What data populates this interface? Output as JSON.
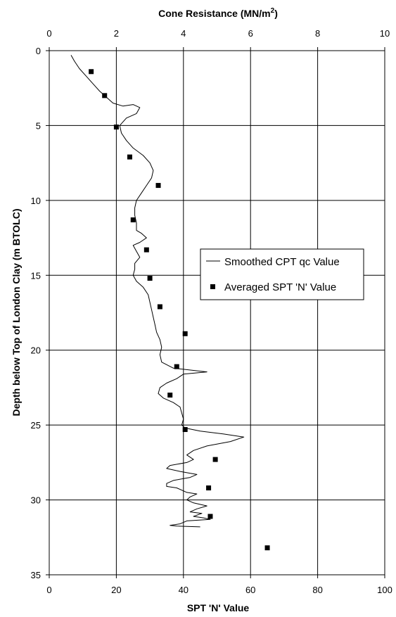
{
  "chart_data": {
    "type": "line",
    "top_axis": {
      "title_text": "Cone Resistance (MN/m",
      "title_sup": "2",
      "title_close": ")",
      "min": 0,
      "max": 10,
      "ticks": [
        "0",
        "2",
        "4",
        "6",
        "8",
        "10"
      ]
    },
    "bottom_axis": {
      "title": "SPT 'N' Value",
      "min": 0,
      "max": 100,
      "ticks": [
        "0",
        "20",
        "40",
        "60",
        "80",
        "100"
      ]
    },
    "y_axis": {
      "title": "Depth below Top of London Clay (m BTOLC)",
      "min": 0,
      "max": 35,
      "inverted": true,
      "ticks": [
        "0",
        "5",
        "10",
        "15",
        "20",
        "25",
        "30",
        "35"
      ]
    },
    "grid": true,
    "legend": {
      "position": "right-middle",
      "items": [
        "Smoothed CPT qc Value",
        "Averaged SPT 'N' Value"
      ]
    },
    "series": [
      {
        "name": "Smoothed CPT qc Value",
        "kind": "line",
        "axis": "top",
        "color": "#000000",
        "points": [
          [
            0.65,
            0.3
          ],
          [
            0.75,
            0.7
          ],
          [
            0.9,
            1.2
          ],
          [
            1.1,
            1.7
          ],
          [
            1.3,
            2.2
          ],
          [
            1.5,
            2.7
          ],
          [
            1.7,
            3.1
          ],
          [
            1.9,
            3.5
          ],
          [
            2.2,
            3.7
          ],
          [
            2.5,
            3.6
          ],
          [
            2.7,
            3.8
          ],
          [
            2.6,
            4.2
          ],
          [
            2.3,
            4.5
          ],
          [
            2.1,
            5.0
          ],
          [
            2.15,
            5.5
          ],
          [
            2.3,
            6.0
          ],
          [
            2.5,
            6.5
          ],
          [
            2.8,
            7.0
          ],
          [
            3.0,
            7.5
          ],
          [
            3.1,
            8.0
          ],
          [
            3.05,
            8.5
          ],
          [
            2.9,
            9.0
          ],
          [
            2.75,
            9.5
          ],
          [
            2.6,
            10.0
          ],
          [
            2.55,
            10.5
          ],
          [
            2.55,
            11.0
          ],
          [
            2.6,
            11.5
          ],
          [
            2.6,
            12.0
          ],
          [
            2.75,
            12.2
          ],
          [
            2.9,
            12.5
          ],
          [
            2.7,
            12.8
          ],
          [
            2.5,
            13.0
          ],
          [
            2.6,
            13.4
          ],
          [
            2.7,
            13.8
          ],
          [
            2.55,
            14.2
          ],
          [
            2.55,
            14.6
          ],
          [
            2.5,
            15.0
          ],
          [
            2.6,
            15.4
          ],
          [
            2.8,
            15.8
          ],
          [
            2.95,
            16.3
          ],
          [
            3.0,
            16.8
          ],
          [
            3.05,
            17.3
          ],
          [
            3.1,
            17.8
          ],
          [
            3.15,
            18.3
          ],
          [
            3.2,
            18.8
          ],
          [
            3.3,
            19.3
          ],
          [
            3.35,
            19.8
          ],
          [
            3.3,
            20.3
          ],
          [
            3.35,
            20.8
          ],
          [
            3.7,
            21.2
          ],
          [
            4.7,
            21.45
          ],
          [
            4.0,
            21.6
          ],
          [
            3.8,
            21.9
          ],
          [
            3.5,
            22.2
          ],
          [
            3.3,
            22.5
          ],
          [
            3.25,
            22.9
          ],
          [
            3.4,
            23.2
          ],
          [
            3.7,
            23.5
          ],
          [
            3.9,
            23.8
          ],
          [
            3.95,
            24.2
          ],
          [
            4.0,
            24.6
          ],
          [
            3.95,
            25.0
          ],
          [
            4.05,
            25.2
          ],
          [
            4.5,
            25.4
          ],
          [
            5.2,
            25.6
          ],
          [
            5.8,
            25.8
          ],
          [
            5.4,
            26.1
          ],
          [
            4.7,
            26.4
          ],
          [
            4.3,
            26.7
          ],
          [
            4.1,
            27.0
          ],
          [
            4.3,
            27.3
          ],
          [
            4.1,
            27.5
          ],
          [
            3.6,
            27.7
          ],
          [
            3.5,
            27.9
          ],
          [
            3.9,
            28.1
          ],
          [
            4.4,
            28.3
          ],
          [
            4.2,
            28.5
          ],
          [
            3.7,
            28.7
          ],
          [
            3.5,
            28.9
          ],
          [
            3.5,
            29.1
          ],
          [
            3.8,
            29.2
          ],
          [
            4.1,
            29.5
          ],
          [
            4.4,
            29.6
          ],
          [
            4.2,
            29.8
          ],
          [
            4.1,
            30.0
          ],
          [
            4.3,
            30.2
          ],
          [
            4.7,
            30.4
          ],
          [
            4.4,
            30.6
          ],
          [
            4.2,
            30.8
          ],
          [
            4.55,
            30.9
          ],
          [
            4.3,
            31.1
          ],
          [
            4.6,
            31.2
          ],
          [
            4.8,
            31.3
          ],
          [
            4.1,
            31.4
          ],
          [
            3.9,
            31.6
          ],
          [
            3.6,
            31.7
          ],
          [
            3.8,
            31.75
          ],
          [
            4.5,
            31.8
          ]
        ]
      },
      {
        "name": "Averaged SPT 'N' Value",
        "kind": "markers",
        "axis": "bottom",
        "color": "#000000",
        "points": [
          [
            12.5,
            1.4
          ],
          [
            16.5,
            3.0
          ],
          [
            20.0,
            5.1
          ],
          [
            24.0,
            7.1
          ],
          [
            32.5,
            9.0
          ],
          [
            25.0,
            11.3
          ],
          [
            29.0,
            13.3
          ],
          [
            30.0,
            15.2
          ],
          [
            33.0,
            17.1
          ],
          [
            40.5,
            18.9
          ],
          [
            38.0,
            21.1
          ],
          [
            36.0,
            23.0
          ],
          [
            40.5,
            25.3
          ],
          [
            49.5,
            27.3
          ],
          [
            47.5,
            29.2
          ],
          [
            48.0,
            31.1
          ],
          [
            65.0,
            33.2
          ]
        ]
      }
    ]
  }
}
